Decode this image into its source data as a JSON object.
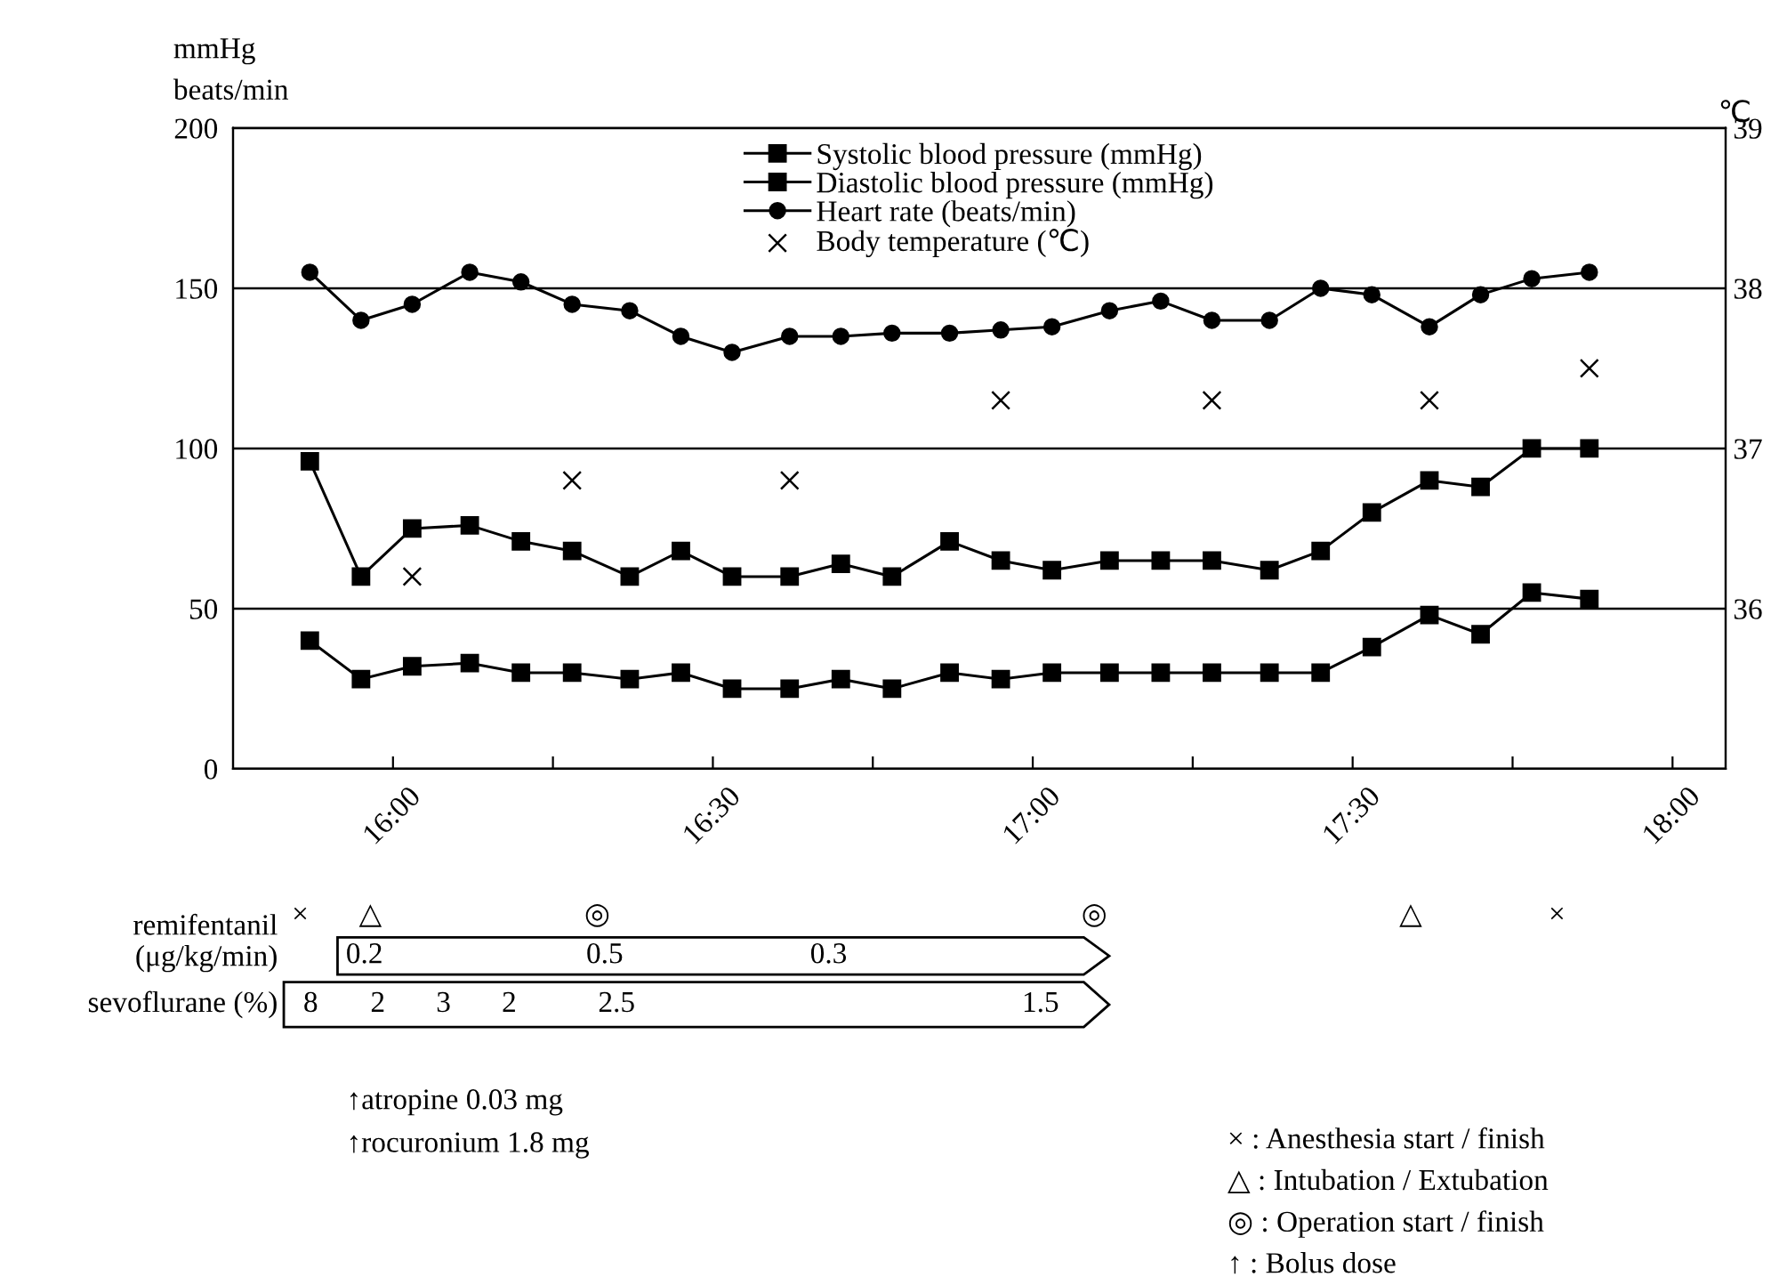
{
  "chart_data": {
    "type": "line",
    "ylabel": "mmHg\nbeats/min",
    "y2label": "℃",
    "x": [
      15.87,
      15.95,
      16.03,
      16.12,
      16.2,
      16.28,
      16.37,
      16.45,
      16.53,
      16.62,
      16.7,
      16.78,
      16.87,
      16.95,
      17.03,
      17.12,
      17.2,
      17.28,
      17.37,
      17.45,
      17.53,
      17.62,
      17.7,
      17.78,
      17.87
    ],
    "series": [
      {
        "name": "Systolic blood pressure (mmHg)",
        "color": "#000000",
        "marker": "square",
        "values": [
          96,
          60,
          75,
          76,
          71,
          68,
          60,
          68,
          60,
          60,
          64,
          60,
          71,
          65,
          62,
          65,
          65,
          65,
          62,
          68,
          80,
          90,
          88,
          100,
          100
        ]
      },
      {
        "name": "Diastolic blood pressure (mmHg)",
        "color": "#000000",
        "marker": "square",
        "values": [
          40,
          28,
          32,
          33,
          30,
          30,
          28,
          30,
          25,
          25,
          28,
          25,
          30,
          28,
          30,
          30,
          30,
          30,
          30,
          30,
          38,
          48,
          42,
          55,
          53
        ]
      },
      {
        "name": "Heart rate (beats/min)",
        "color": "#000000",
        "marker": "circle",
        "values": [
          155,
          140,
          145,
          155,
          152,
          145,
          143,
          135,
          130,
          135,
          135,
          136,
          136,
          137,
          138,
          143,
          146,
          140,
          140,
          150,
          148,
          138,
          148,
          153,
          155
        ]
      },
      {
        "name": "Body temperature (℃)",
        "type": "scatter",
        "axis": "y2",
        "color": "#000000",
        "marker": "cross",
        "x": [
          16.03,
          16.28,
          16.62,
          16.95,
          17.28,
          17.62,
          17.87
        ],
        "values": [
          36.2,
          36.8,
          36.8,
          37.3,
          37.3,
          37.3,
          37.5
        ]
      }
    ],
    "xlim": [
      15.75,
      18.083
    ],
    "xticks": [
      {
        "value": 16,
        "label": "16:00"
      },
      {
        "value": 16.25,
        "label": null
      },
      {
        "value": 16.5,
        "label": "16:30"
      },
      {
        "value": 16.75,
        "label": null
      },
      {
        "value": 17,
        "label": "17:00"
      },
      {
        "value": 17.25,
        "label": null
      },
      {
        "value": 17.5,
        "label": "17:30"
      },
      {
        "value": 17.75,
        "label": null
      },
      {
        "value": 18,
        "label": "18:00"
      }
    ],
    "ylim": [
      0,
      200
    ],
    "yticks": [
      0,
      50,
      100,
      150,
      200
    ],
    "y2lim": [
      35,
      39
    ],
    "y2ticks": [
      36,
      37,
      38,
      39
    ],
    "grid": "y",
    "legend": "top",
    "line_style": "solid",
    "annotations": [
      "×",
      "△",
      "◎",
      "◎",
      "△",
      "×",
      "remifentanil\n(μg/kg/min)",
      "0.2",
      "0.5",
      "0.3",
      "sevoflurane (%)",
      "8",
      "2",
      "3",
      "2",
      "2.5",
      "1.5",
      "↑atropine 0.03 mg",
      "↑rocuronium 1.8 mg",
      "× : Anesthesia start / finish",
      "△ : Intubation / Extubation",
      "◎ : Operation start / finish",
      "↑ : Bolus dose"
    ]
  }
}
